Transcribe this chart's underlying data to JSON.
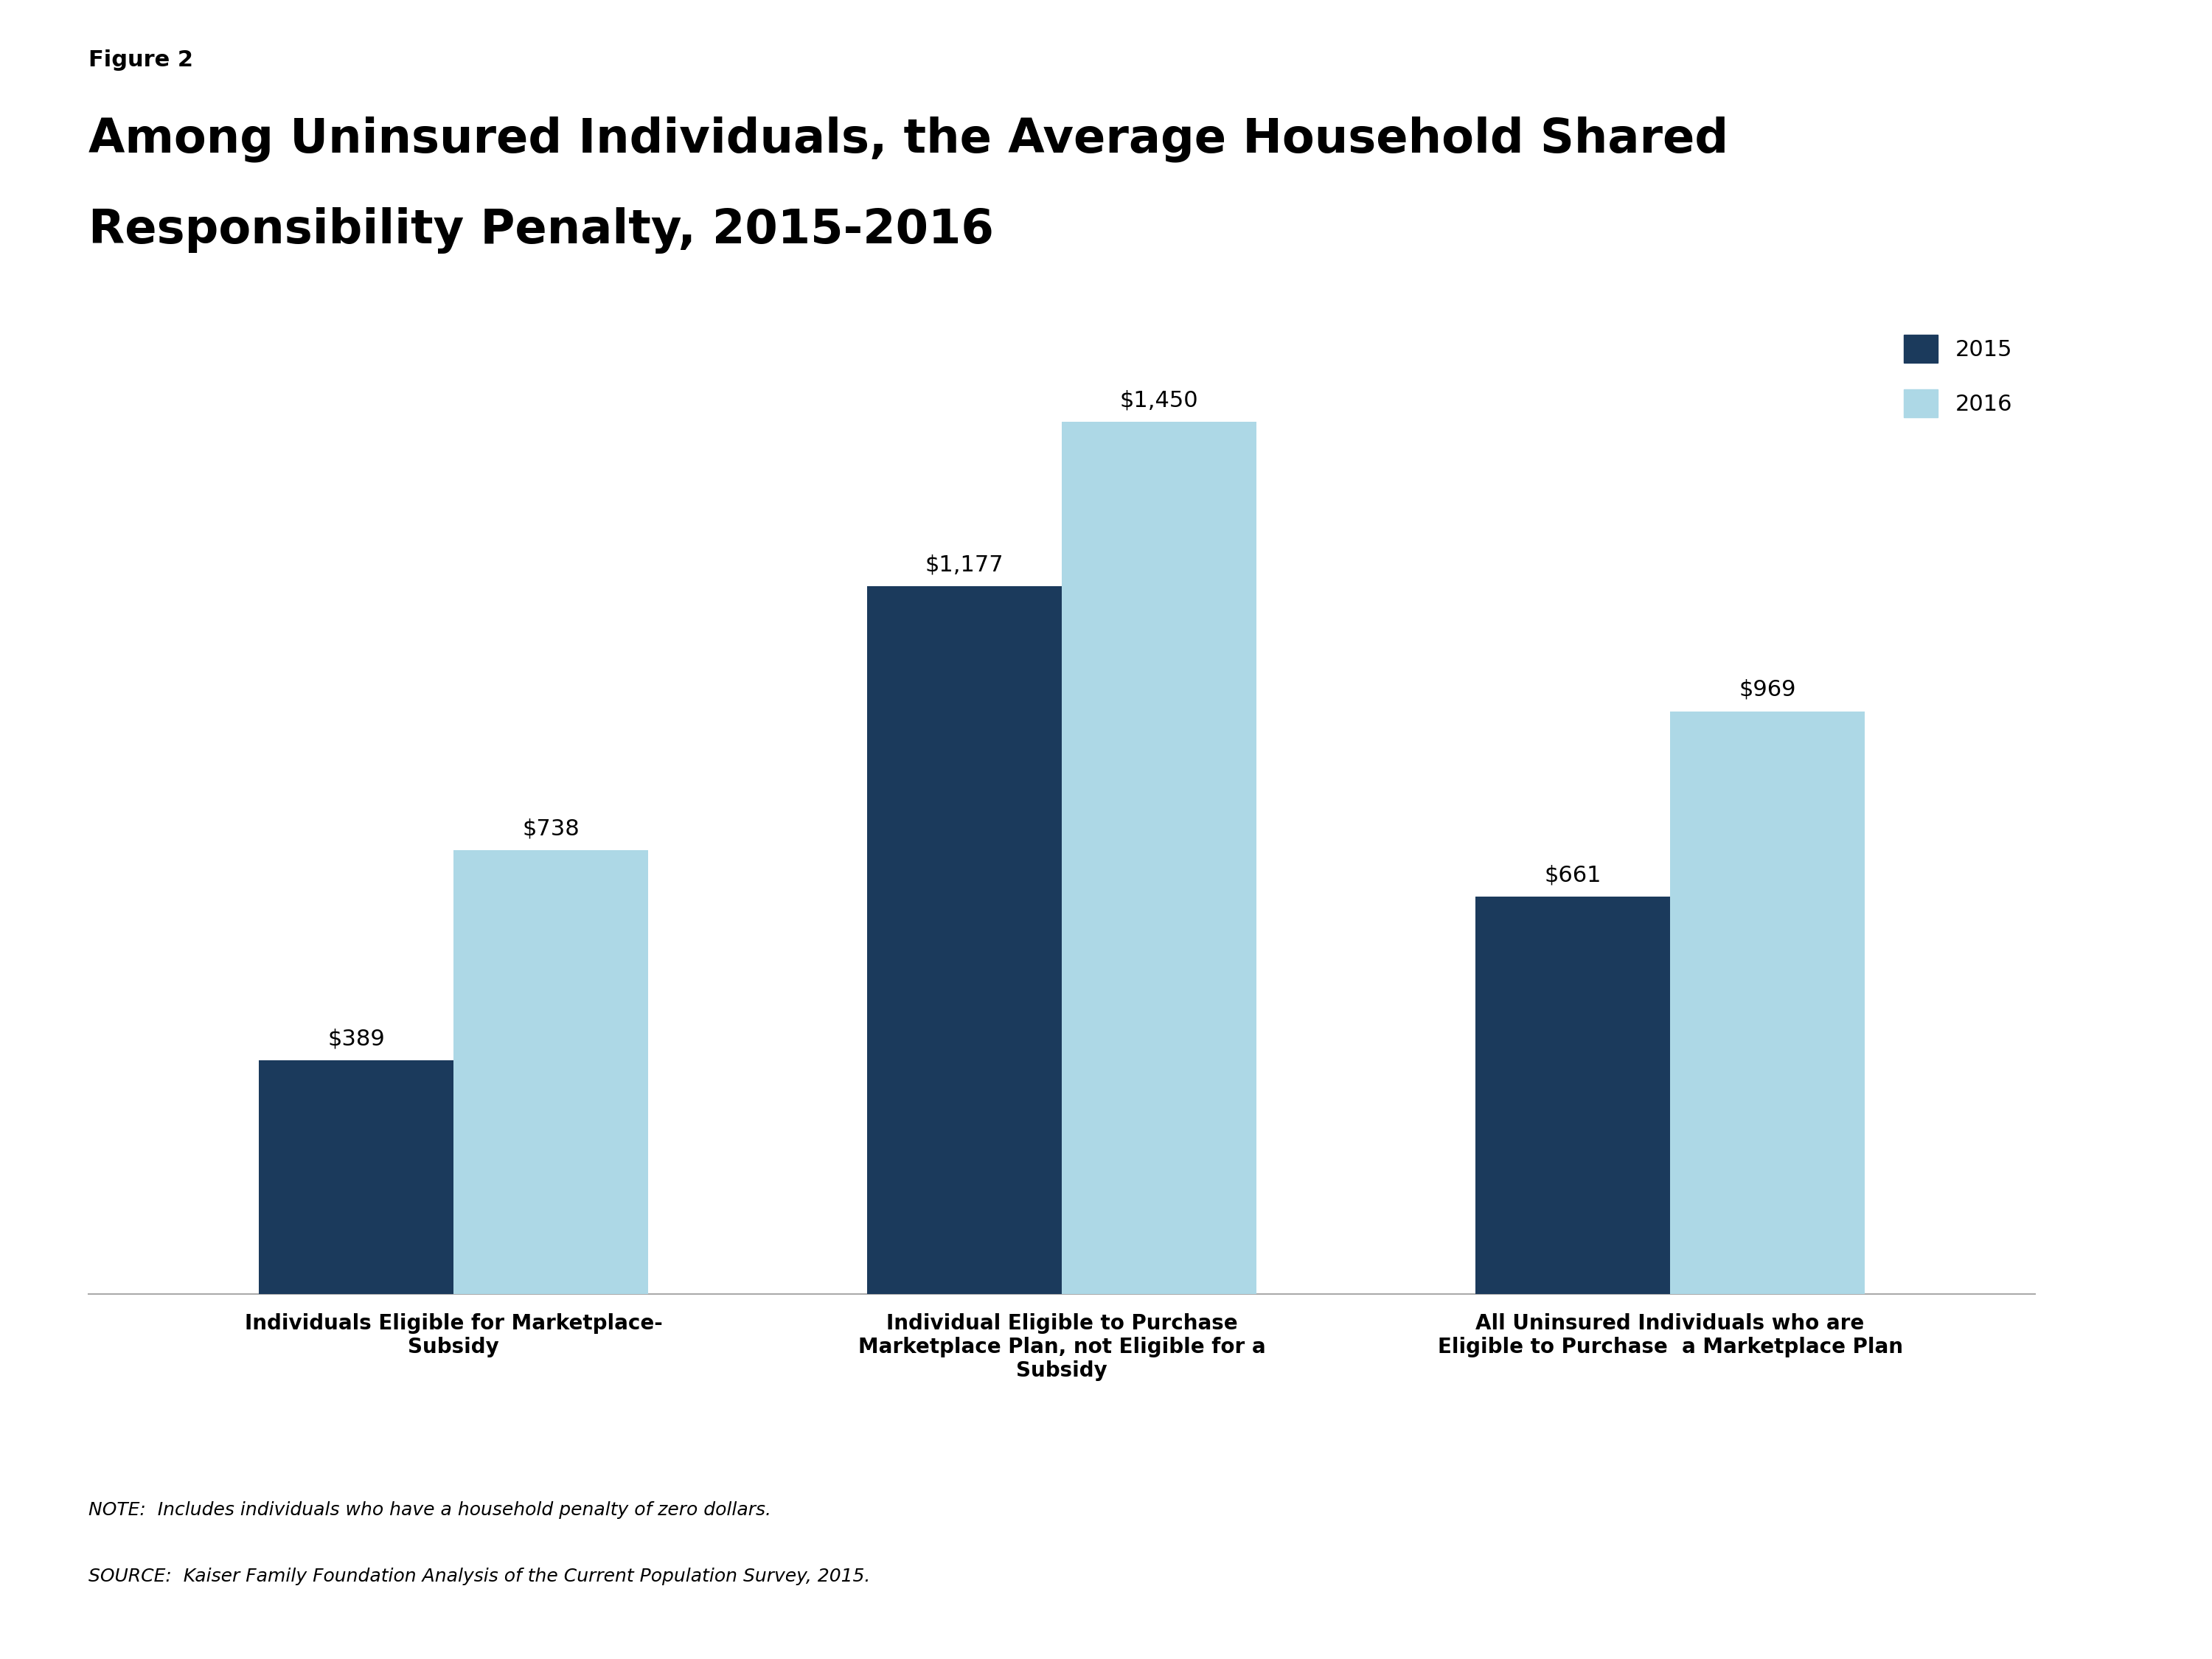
{
  "figure_label": "Figure 2",
  "title_line1": "Among Uninsured Individuals, the Average Household Shared",
  "title_line2": "Responsibility Penalty, 2015-2016",
  "categories": [
    "Individuals Eligible for Marketplace-\nSubsidy",
    "Individual Eligible to Purchase\nMarketplace Plan, not Eligible for a\nSubsidy",
    "All Uninsured Individuals who are\nEligible to Purchase  a Marketplace Plan"
  ],
  "values_2015": [
    389,
    1177,
    661
  ],
  "values_2016": [
    738,
    1450,
    969
  ],
  "labels_2015": [
    "$389",
    "$1,177",
    "$661"
  ],
  "labels_2016": [
    "$738",
    "$1,450",
    "$969"
  ],
  "color_2015": "#1B3A5C",
  "color_2016_actual": "#ADD8E6",
  "ylim": [
    0,
    1600
  ],
  "bar_width": 0.32,
  "legend_labels": [
    "2015",
    "2016"
  ],
  "note_text": "NOTE:  Includes individuals who have a household penalty of zero dollars.",
  "source_text": "SOURCE:  Kaiser Family Foundation Analysis of the Current Population Survey, 2015.",
  "background_color": "#FFFFFF",
  "axis_line_color": "#AAAAAA",
  "title_fontsize": 46,
  "figure_label_fontsize": 22,
  "bar_label_fontsize": 22,
  "xtick_fontsize": 20,
  "legend_fontsize": 22,
  "note_fontsize": 18,
  "kaiser_box_color": "#1B3A5C"
}
